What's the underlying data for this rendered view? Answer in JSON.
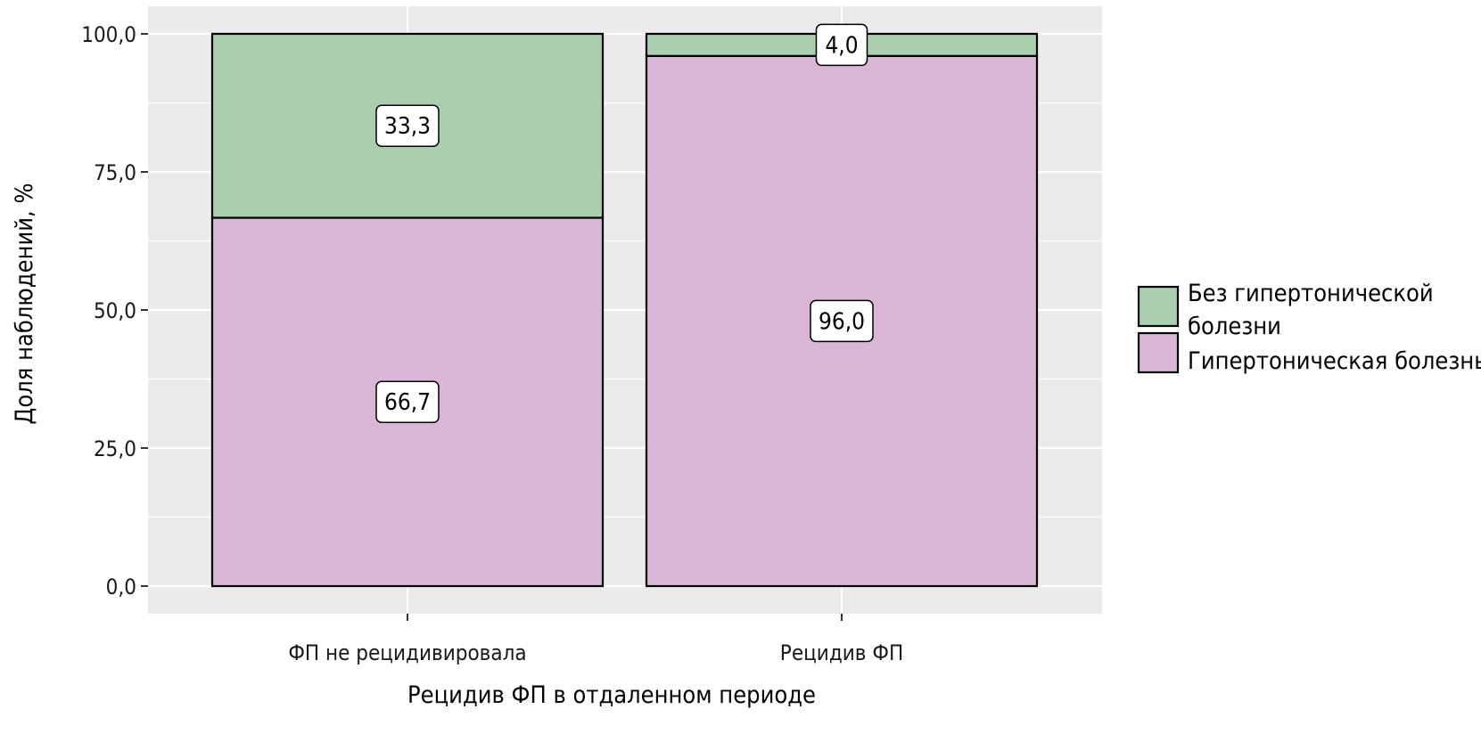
{
  "chart_data": {
    "type": "bar",
    "stacked": true,
    "categories": [
      "ФП не рецидивировала",
      "Рецидив ФП"
    ],
    "series": [
      {
        "name": "Гипертоническая болезнь",
        "values": [
          66.7,
          96.0
        ],
        "labels": [
          "66,7",
          "96,0"
        ],
        "color": "#d9b6d5"
      },
      {
        "name": "Без гипертонической болезни",
        "values": [
          33.3,
          4.0
        ],
        "labels": [
          "33,3",
          "4,0"
        ],
        "color": "#a9cfae"
      }
    ],
    "legend_order": [
      1,
      0
    ],
    "legend_lines": [
      [
        "Без гипертонической",
        "болезни"
      ],
      [
        "Гипертоническая болезнь"
      ]
    ],
    "xlabel": "Рецидив ФП в отдаленном периоде",
    "ylabel": "Доля наблюдений, %",
    "ylim": [
      0,
      100
    ],
    "yticks": [
      0,
      25,
      50,
      75,
      100
    ],
    "ytick_labels": [
      "0,0",
      "25,0",
      "50,0",
      "75,0",
      "100,0"
    ],
    "grid": true,
    "legend_position": "right",
    "panel_background": "#ebebeb"
  }
}
